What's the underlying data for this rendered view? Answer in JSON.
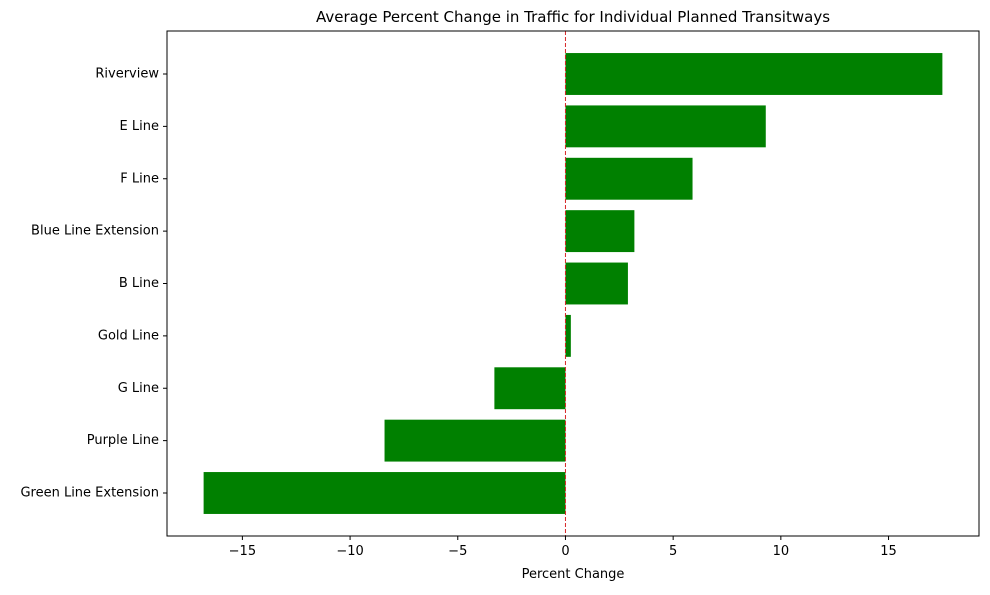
{
  "chart_data": {
    "type": "bar",
    "orientation": "horizontal",
    "title": "Average Percent Change in Traffic for Individual Planned Transitways",
    "xlabel": "Percent Change",
    "ylabel": "",
    "categories": [
      "Riverview",
      "E Line",
      "F Line",
      "Blue Line Extension",
      "B Line",
      "Gold Line",
      "G Line",
      "Purple Line",
      "Green Line Extension"
    ],
    "values": [
      17.5,
      9.3,
      5.9,
      3.2,
      2.9,
      0.25,
      -3.3,
      -8.4,
      -16.8
    ],
    "xlim": [
      -18.5,
      19.2
    ],
    "xticks": [
      -15,
      -10,
      -5,
      0,
      5,
      10,
      15
    ],
    "xtick_labels": [
      "−15",
      "−10",
      "−5",
      "0",
      "5",
      "10",
      "15"
    ],
    "reference_line": {
      "x": 0,
      "style": "dashed",
      "color": "#d62728"
    },
    "bar_color": "#008000",
    "grid": false,
    "legend": "none"
  }
}
